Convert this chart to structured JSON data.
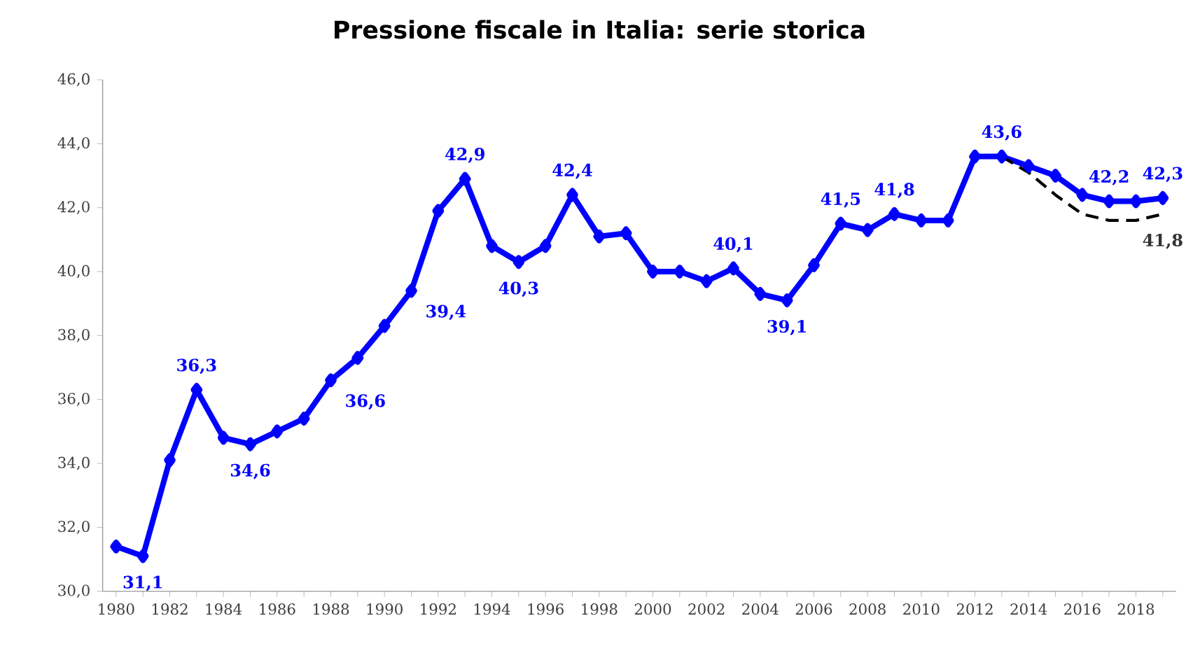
{
  "chart_data": {
    "type": "line",
    "title": "Pressione fiscale in Italia: serie storica",
    "categories": [
      "1980",
      null,
      "1982",
      null,
      "1984",
      null,
      "1986",
      null,
      "1988",
      null,
      "1990",
      null,
      "1992",
      null,
      "1994",
      null,
      "1996",
      null,
      "1998",
      null,
      "2000",
      null,
      "2002",
      null,
      "2004",
      null,
      "2006",
      null,
      "2008",
      null,
      "2010",
      null,
      "2012",
      null,
      "2014",
      null,
      "2016",
      null,
      "2018",
      null
    ],
    "series": [
      {
        "color": "#0000ff",
        "marker": "diamond",
        "line_style": "solid",
        "values": [
          31.4,
          31.1,
          34.1,
          36.3,
          34.8,
          34.6,
          35.0,
          35.4,
          36.6,
          37.3,
          38.3,
          39.4,
          41.9,
          42.9,
          40.8,
          40.3,
          40.8,
          42.4,
          41.1,
          41.2,
          40.0,
          40.0,
          39.7,
          40.1,
          39.3,
          39.1,
          40.2,
          41.5,
          41.3,
          41.8,
          41.6,
          41.6,
          43.6,
          43.6,
          43.3,
          43.0,
          42.4,
          42.2,
          42.2,
          42.3
        ],
        "value_labels": [
          null,
          "31,1",
          null,
          "36,3",
          null,
          "34,6",
          null,
          null,
          "36,6",
          null,
          null,
          "39,4",
          null,
          "42,9",
          null,
          "40,3",
          null,
          "42,4",
          null,
          null,
          null,
          null,
          null,
          "40,1",
          null,
          "39,1",
          null,
          "41,5",
          null,
          "41,8",
          null,
          null,
          null,
          "43,6",
          null,
          null,
          null,
          "42,2",
          null,
          "42,3"
        ]
      },
      {
        "color": "#000000",
        "marker": "none",
        "line_style": "dashed",
        "values": [
          null,
          null,
          null,
          null,
          null,
          null,
          null,
          null,
          null,
          null,
          null,
          null,
          null,
          null,
          null,
          null,
          null,
          null,
          null,
          null,
          null,
          null,
          null,
          null,
          null,
          null,
          null,
          null,
          null,
          null,
          null,
          null,
          null,
          43.6,
          43.1,
          42.4,
          41.8,
          41.6,
          41.6,
          41.8
        ],
        "value_labels": [
          null,
          null,
          null,
          null,
          null,
          null,
          null,
          null,
          null,
          null,
          null,
          null,
          null,
          null,
          null,
          null,
          null,
          null,
          null,
          null,
          null,
          null,
          null,
          null,
          null,
          null,
          null,
          null,
          null,
          null,
          null,
          null,
          null,
          null,
          null,
          null,
          null,
          null,
          null,
          "41,8"
        ]
      }
    ],
    "ylim": [
      30,
      46
    ],
    "yticks": [
      {
        "value": 30,
        "label": "30,0"
      },
      {
        "value": 32,
        "label": "32,0"
      },
      {
        "value": 34,
        "label": "34,0"
      },
      {
        "value": 36,
        "label": "36,0"
      },
      {
        "value": 38,
        "label": "38,0"
      },
      {
        "value": 40,
        "label": "40,0"
      },
      {
        "value": 42,
        "label": "42,0"
      },
      {
        "value": 44,
        "label": "44,0"
      },
      {
        "value": 46,
        "label": "46,0"
      }
    ],
    "grid": false
  }
}
